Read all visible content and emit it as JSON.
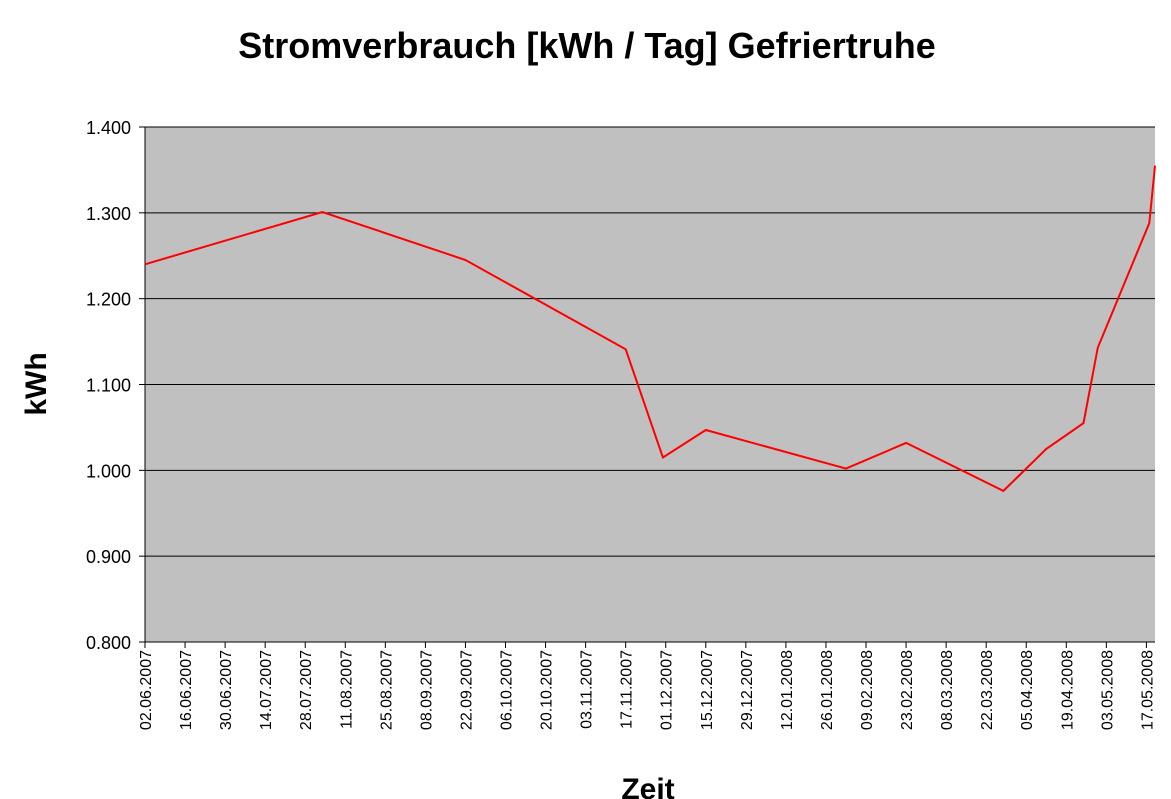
{
  "chart_data": {
    "type": "line",
    "title": "Stromverbrauch [kWh / Tag] Gefriertruhe",
    "xlabel": "Zeit",
    "ylabel": "kWh",
    "ylim": [
      0.8,
      1.4
    ],
    "yticks": [
      "0.800",
      "0.900",
      "1.000",
      "1.100",
      "1.200",
      "1.300",
      "1.400"
    ],
    "xlim": [
      "02.06.2007",
      "20.05.2008"
    ],
    "xticks": [
      "02.06.2007",
      "16.06.2007",
      "30.06.2007",
      "14.07.2007",
      "28.07.2007",
      "11.08.2007",
      "25.08.2007",
      "08.09.2007",
      "22.09.2007",
      "06.10.2007",
      "20.10.2007",
      "03.11.2007",
      "17.11.2007",
      "01.12.2007",
      "15.12.2007",
      "29.12.2007",
      "12.01.2008",
      "26.01.2008",
      "09.02.2008",
      "23.02.2008",
      "08.03.2008",
      "22.03.2008",
      "05.04.2008",
      "19.04.2008",
      "03.05.2008",
      "17.05.2008"
    ],
    "grid": true,
    "plot_background": "#c0c0c0",
    "line_color": "#ff0000",
    "series": [
      {
        "x": [
          "02.06.2007",
          "03.08.2007",
          "22.09.2007",
          "17.11.2007",
          "30.11.2007",
          "15.12.2007",
          "02.02.2008",
          "23.02.2008",
          "28.03.2008",
          "12.04.2008",
          "25.04.2008",
          "30.04.2008",
          "18.05.2008",
          "20.05.2008"
        ],
        "y": [
          1.24,
          1.301,
          1.245,
          1.141,
          1.015,
          1.047,
          1.002,
          1.032,
          0.976,
          1.025,
          1.055,
          1.143,
          1.288,
          1.355
        ]
      }
    ]
  }
}
